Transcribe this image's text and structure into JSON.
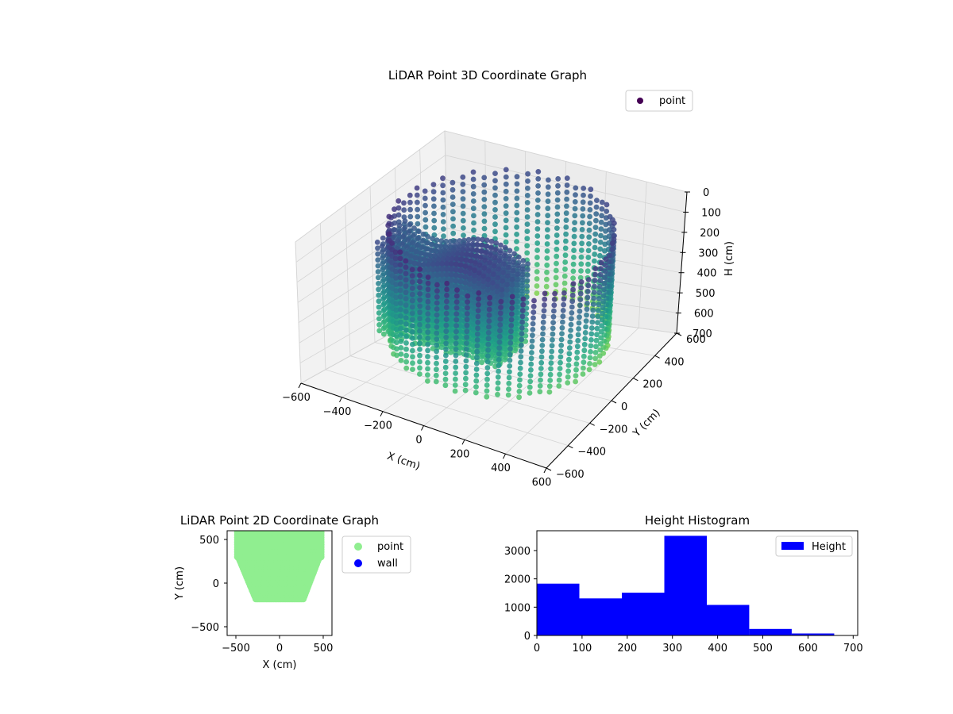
{
  "chart_data": [
    {
      "type": "scatter3d",
      "title": "LiDAR Point 3D Coordinate Graph",
      "xlabel": "X (cm)",
      "ylabel": "Y (cm)",
      "zlabel": "H (cm)",
      "xlim": [
        -600,
        600
      ],
      "ylim": [
        -600,
        600
      ],
      "zlim": [
        0,
        700
      ],
      "z_inverted": true,
      "x_ticks": [
        "−600",
        "−400",
        "−200",
        "0",
        "200",
        "400",
        "600"
      ],
      "y_ticks": [
        "−600",
        "−400",
        "−200",
        "0",
        "200",
        "400",
        "600"
      ],
      "z_ticks": [
        "0",
        "100",
        "200",
        "300",
        "400",
        "500",
        "600",
        "700"
      ],
      "colormap": "viridis",
      "legend": {
        "placement": "top-right",
        "entries": [
          {
            "label": "point",
            "color": "#440154"
          }
        ]
      },
      "grid": true,
      "shape": {
        "wall_radius_cm": 500,
        "wall_height_range_cm": [
          30,
          600
        ],
        "block_x_range_cm": [
          -450,
          150
        ],
        "block_y_range_cm": [
          -200,
          50
        ],
        "block_height_range_cm": [
          120,
          550
        ]
      }
    },
    {
      "type": "scatter",
      "title": "LiDAR Point 2D Coordinate Graph",
      "xlabel": "X (cm)",
      "ylabel": "Y (cm)",
      "xlim": [
        -600,
        600
      ],
      "ylim": [
        -600,
        600
      ],
      "x_ticks": [
        "−500",
        "0",
        "500"
      ],
      "y_ticks": [
        "−500",
        "0",
        "500"
      ],
      "series": [
        {
          "name": "point",
          "color": "#90ee90"
        },
        {
          "name": "wall",
          "color": "#0000ff"
        }
      ],
      "legend": {
        "placement": "outside-right"
      },
      "grid": false
    },
    {
      "type": "bar",
      "title": "Height Histogram",
      "xlim": [
        0,
        710
      ],
      "ylim": [
        0,
        3700
      ],
      "x_ticks": [
        "0",
        "100",
        "200",
        "300",
        "400",
        "500",
        "600",
        "700"
      ],
      "y_ticks": [
        "0",
        "1000",
        "2000",
        "3000"
      ],
      "bins": [
        {
          "start": 0,
          "end": 94,
          "count": 1830
        },
        {
          "start": 94,
          "end": 188,
          "count": 1310
        },
        {
          "start": 188,
          "end": 282,
          "count": 1510
        },
        {
          "start": 282,
          "end": 376,
          "count": 3520
        },
        {
          "start": 376,
          "end": 470,
          "count": 1080
        },
        {
          "start": 470,
          "end": 564,
          "count": 230
        },
        {
          "start": 564,
          "end": 658,
          "count": 70
        },
        {
          "start": 658,
          "end": 710,
          "count": 15
        }
      ],
      "series": [
        {
          "name": "Height",
          "color": "#0000ff"
        }
      ],
      "legend": {
        "placement": "top-right"
      },
      "grid": false
    }
  ]
}
